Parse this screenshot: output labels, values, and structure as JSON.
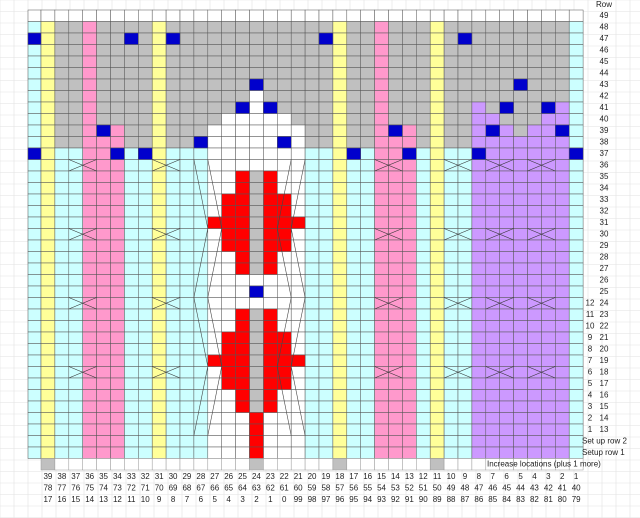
{
  "row_header": "Row",
  "row_labels": [
    49,
    48,
    47,
    46,
    45,
    44,
    43,
    42,
    41,
    40,
    39,
    38,
    37,
    36,
    35,
    34,
    33,
    32,
    31,
    30,
    29,
    28,
    27,
    26,
    25,
    24,
    23,
    22,
    21,
    20,
    19,
    18,
    17,
    16,
    15,
    14,
    13
  ],
  "pattern_rows": [
    12,
    11,
    10,
    9,
    8,
    7,
    6,
    5,
    4,
    3,
    2,
    1
  ],
  "setup_rows": [
    "Set up row 2",
    "Setup row 1"
  ],
  "increase_label": "Increase locations (plus 1 more)",
  "stitch_numbers": [
    [
      39,
      38,
      37,
      36,
      35,
      34,
      33,
      32,
      31,
      30,
      29,
      28,
      27,
      26,
      25,
      24,
      23,
      22,
      21,
      20,
      19,
      18,
      17,
      16,
      15,
      14,
      13,
      12,
      11,
      10,
      9,
      8,
      7,
      6,
      5,
      4,
      3,
      2,
      1
    ],
    [
      78,
      77,
      76,
      75,
      74,
      73,
      72,
      71,
      70,
      69,
      68,
      67,
      66,
      65,
      64,
      63,
      62,
      61,
      60,
      59,
      58,
      57,
      56,
      55,
      54,
      53,
      52,
      51,
      50,
      49,
      48,
      47,
      46,
      45,
      44,
      43,
      42,
      41,
      40
    ],
    [
      17,
      16,
      15,
      14,
      13,
      12,
      11,
      10,
      9,
      8,
      7,
      6,
      5,
      4,
      3,
      2,
      1,
      0,
      99,
      98,
      97,
      96,
      95,
      94,
      93,
      92,
      91,
      90,
      89,
      88,
      87,
      86,
      85,
      84,
      83,
      82,
      81,
      80,
      79
    ]
  ]
}
